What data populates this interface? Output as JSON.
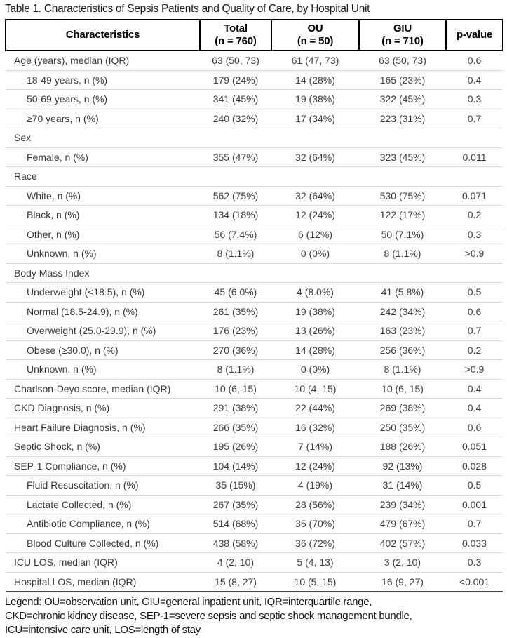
{
  "title": "Table 1. Characteristics of Sepsis Patients and Quality of Care, by Hospital Unit",
  "table": {
    "columns": [
      {
        "label": "Characteristics",
        "sub": ""
      },
      {
        "label": "Total",
        "sub": "(n = 760)"
      },
      {
        "label": "OU",
        "sub": "(n = 50)"
      },
      {
        "label": "GIU",
        "sub": "(n = 710)"
      },
      {
        "label": "p-value",
        "sub": ""
      }
    ],
    "rows": [
      {
        "label": "Age (years), median (IQR)",
        "indent": false,
        "section": false,
        "total": "63 (50, 73)",
        "ou": "61 (47, 73)",
        "giu": "63 (50, 73)",
        "p": "0.6"
      },
      {
        "label": "18-49 years, n (%)",
        "indent": true,
        "section": false,
        "total": "179 (24%)",
        "ou": "14 (28%)",
        "giu": "165 (23%)",
        "p": "0.4"
      },
      {
        "label": "50-69 years, n (%)",
        "indent": true,
        "section": false,
        "total": "341 (45%)",
        "ou": "19 (38%)",
        "giu": "322 (45%)",
        "p": "0.3"
      },
      {
        "label": "≥70 years, n (%)",
        "indent": true,
        "section": false,
        "total": "240 (32%)",
        "ou": "17 (34%)",
        "giu": "223 (31%)",
        "p": "0.7"
      },
      {
        "label": "Sex",
        "indent": false,
        "section": true,
        "total": "",
        "ou": "",
        "giu": "",
        "p": ""
      },
      {
        "label": "Female, n (%)",
        "indent": true,
        "section": false,
        "total": "355 (47%)",
        "ou": "32 (64%)",
        "giu": "323 (45%)",
        "p": "0.011"
      },
      {
        "label": "Race",
        "indent": false,
        "section": true,
        "total": "",
        "ou": "",
        "giu": "",
        "p": ""
      },
      {
        "label": "White, n (%)",
        "indent": true,
        "section": false,
        "total": "562 (75%)",
        "ou": "32 (64%)",
        "giu": "530 (75%)",
        "p": "0.071"
      },
      {
        "label": "Black, n (%)",
        "indent": true,
        "section": false,
        "total": "134 (18%)",
        "ou": "12 (24%)",
        "giu": "122 (17%)",
        "p": "0.2"
      },
      {
        "label": "Other, n (%)",
        "indent": true,
        "section": false,
        "total": "56 (7.4%)",
        "ou": "6 (12%)",
        "giu": "50 (7.1%)",
        "p": "0.3"
      },
      {
        "label": "Unknown, n (%)",
        "indent": true,
        "section": false,
        "total": "8 (1.1%)",
        "ou": "0 (0%)",
        "giu": "8 (1.1%)",
        "p": ">0.9"
      },
      {
        "label": "Body Mass Index",
        "indent": false,
        "section": true,
        "total": "",
        "ou": "",
        "giu": "",
        "p": ""
      },
      {
        "label": "Underweight (<18.5), n (%)",
        "indent": true,
        "section": false,
        "total": "45 (6.0%)",
        "ou": "4 (8.0%)",
        "giu": "41 (5.8%)",
        "p": "0.5"
      },
      {
        "label": "Normal (18.5-24.9), n (%)",
        "indent": true,
        "section": false,
        "total": "261 (35%)",
        "ou": "19 (38%)",
        "giu": "242 (34%)",
        "p": "0.6"
      },
      {
        "label": "Overweight (25.0-29.9), n (%)",
        "indent": true,
        "section": false,
        "total": "176 (23%)",
        "ou": "13 (26%)",
        "giu": "163 (23%)",
        "p": "0.7"
      },
      {
        "label": "Obese (≥30.0), n (%)",
        "indent": true,
        "section": false,
        "total": "270 (36%)",
        "ou": "14 (28%)",
        "giu": "256 (36%)",
        "p": "0.2"
      },
      {
        "label": "Unknown, n (%)",
        "indent": true,
        "section": false,
        "total": "8 (1.1%)",
        "ou": "0 (0%)",
        "giu": "8 (1.1%)",
        "p": ">0.9"
      },
      {
        "label": "Charlson-Deyo score, median (IQR)",
        "indent": false,
        "section": false,
        "total": "10 (6, 15)",
        "ou": "10 (4, 15)",
        "giu": "10 (6, 15)",
        "p": "0.4"
      },
      {
        "label": "CKD Diagnosis, n (%)",
        "indent": false,
        "section": false,
        "total": "291 (38%)",
        "ou": "22 (44%)",
        "giu": "269 (38%)",
        "p": "0.4"
      },
      {
        "label": "Heart Failure Diagnosis, n (%)",
        "indent": false,
        "section": false,
        "total": "266 (35%)",
        "ou": "16 (32%)",
        "giu": "250 (35%)",
        "p": "0.6"
      },
      {
        "label": "Septic Shock, n (%)",
        "indent": false,
        "section": false,
        "total": "195 (26%)",
        "ou": "7 (14%)",
        "giu": "188 (26%)",
        "p": "0.051"
      },
      {
        "label": "SEP-1 Compliance, n (%)",
        "indent": false,
        "section": false,
        "total": "104 (14%)",
        "ou": "12 (24%)",
        "giu": "92 (13%)",
        "p": "0.028"
      },
      {
        "label": "Fluid Resuscitation, n (%)",
        "indent": true,
        "section": false,
        "total": "35 (15%)",
        "ou": "4 (19%)",
        "giu": "31 (14%)",
        "p": "0.5"
      },
      {
        "label": "Lactate Collected, n (%)",
        "indent": true,
        "section": false,
        "total": "267 (35%)",
        "ou": "28 (56%)",
        "giu": "239 (34%)",
        "p": "0.001"
      },
      {
        "label": "Antibiotic Compliance, n (%)",
        "indent": true,
        "section": false,
        "total": "514 (68%)",
        "ou": "35 (70%)",
        "giu": "479 (67%)",
        "p": "0.7"
      },
      {
        "label": "Blood Culture Collected, n (%)",
        "indent": true,
        "section": false,
        "total": "438 (58%)",
        "ou": "36 (72%)",
        "giu": "402 (57%)",
        "p": "0.033"
      },
      {
        "label": "ICU LOS, median (IQR)",
        "indent": false,
        "section": false,
        "total": "4 (2, 10)",
        "ou": "5 (4, 13)",
        "giu": "3 (2, 10)",
        "p": "0.3"
      },
      {
        "label": "Hospital LOS, median (IQR)",
        "indent": false,
        "section": false,
        "total": "15 (8, 27)",
        "ou": "10 (5, 15)",
        "giu": "16 (9, 27)",
        "p": "<0.001"
      }
    ]
  },
  "legend": {
    "line1": "Legend: OU=observation unit, GIU=general inpatient unit, IQR=interquartile range,",
    "line2": "CKD=chronic kidney disease, SEP-1=severe sepsis and septic shock management bundle,",
    "line3": "ICU=intensive care unit, LOS=length of stay"
  },
  "colors": {
    "header_border": "#000000",
    "row_separator": "#d9d9d9",
    "table_bottom_border": "#4a4a4a",
    "header_text": "#000000",
    "body_text": "#3d3d3d"
  }
}
